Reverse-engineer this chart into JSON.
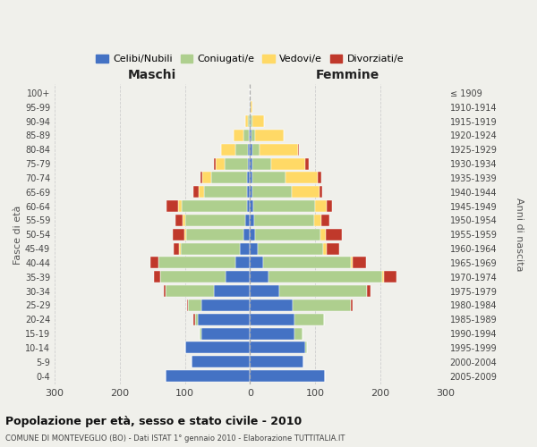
{
  "age_groups": [
    "0-4",
    "5-9",
    "10-14",
    "15-19",
    "20-24",
    "25-29",
    "30-34",
    "35-39",
    "40-44",
    "45-49",
    "50-54",
    "55-59",
    "60-64",
    "65-69",
    "70-74",
    "75-79",
    "80-84",
    "85-89",
    "90-94",
    "95-99",
    "100+"
  ],
  "birth_years": [
    "2005-2009",
    "2000-2004",
    "1995-1999",
    "1990-1994",
    "1985-1989",
    "1980-1984",
    "1975-1979",
    "1970-1974",
    "1965-1969",
    "1960-1964",
    "1955-1959",
    "1950-1954",
    "1945-1949",
    "1940-1944",
    "1935-1939",
    "1930-1934",
    "1925-1929",
    "1920-1924",
    "1915-1919",
    "1910-1914",
    "≤ 1909"
  ],
  "maschi_celibi": [
    130,
    90,
    100,
    75,
    80,
    75,
    55,
    38,
    22,
    15,
    10,
    7,
    5,
    5,
    5,
    4,
    3,
    2,
    1,
    0,
    0
  ],
  "maschi_coniugati": [
    0,
    0,
    0,
    2,
    5,
    20,
    75,
    100,
    118,
    92,
    88,
    92,
    100,
    65,
    55,
    35,
    20,
    8,
    2,
    0,
    0
  ],
  "maschi_vedovi": [
    0,
    0,
    0,
    0,
    0,
    0,
    0,
    0,
    1,
    2,
    3,
    4,
    5,
    9,
    14,
    14,
    22,
    15,
    5,
    1,
    0
  ],
  "maschi_divorziati": [
    0,
    0,
    0,
    0,
    2,
    2,
    2,
    10,
    12,
    8,
    18,
    12,
    18,
    8,
    2,
    2,
    0,
    0,
    0,
    0,
    0
  ],
  "femmine_nubili": [
    115,
    82,
    85,
    68,
    68,
    65,
    45,
    28,
    20,
    12,
    8,
    6,
    5,
    4,
    4,
    3,
    3,
    2,
    1,
    1,
    0
  ],
  "femmine_coniugate": [
    0,
    0,
    2,
    12,
    45,
    90,
    135,
    175,
    135,
    100,
    100,
    92,
    95,
    60,
    50,
    30,
    12,
    5,
    2,
    0,
    0
  ],
  "femmine_vedove": [
    0,
    0,
    0,
    0,
    0,
    0,
    0,
    2,
    3,
    5,
    8,
    12,
    18,
    42,
    50,
    52,
    58,
    45,
    18,
    2,
    0
  ],
  "femmine_divorziate": [
    0,
    0,
    0,
    0,
    0,
    2,
    5,
    20,
    20,
    20,
    25,
    12,
    8,
    5,
    5,
    5,
    2,
    0,
    0,
    0,
    0
  ],
  "colors": {
    "celibi": "#4472C4",
    "coniugati": "#AECF8E",
    "vedovi": "#FFD966",
    "divorziati": "#C0392B"
  },
  "title": "Popolazione per età, sesso e stato civile - 2010",
  "subtitle": "COMUNE DI MONTEVEGLIO (BO) - Dati ISTAT 1° gennaio 2010 - Elaborazione TUTTITALIA.IT",
  "xlabel_left": "Maschi",
  "xlabel_right": "Femmine",
  "ylabel_left": "Fasce di età",
  "ylabel_right": "Anni di nascita",
  "xlim": 300,
  "legend_labels": [
    "Celibi/Nubili",
    "Coniugati/e",
    "Vedovi/e",
    "Divorziati/e"
  ],
  "background_color": "#f0f0eb"
}
